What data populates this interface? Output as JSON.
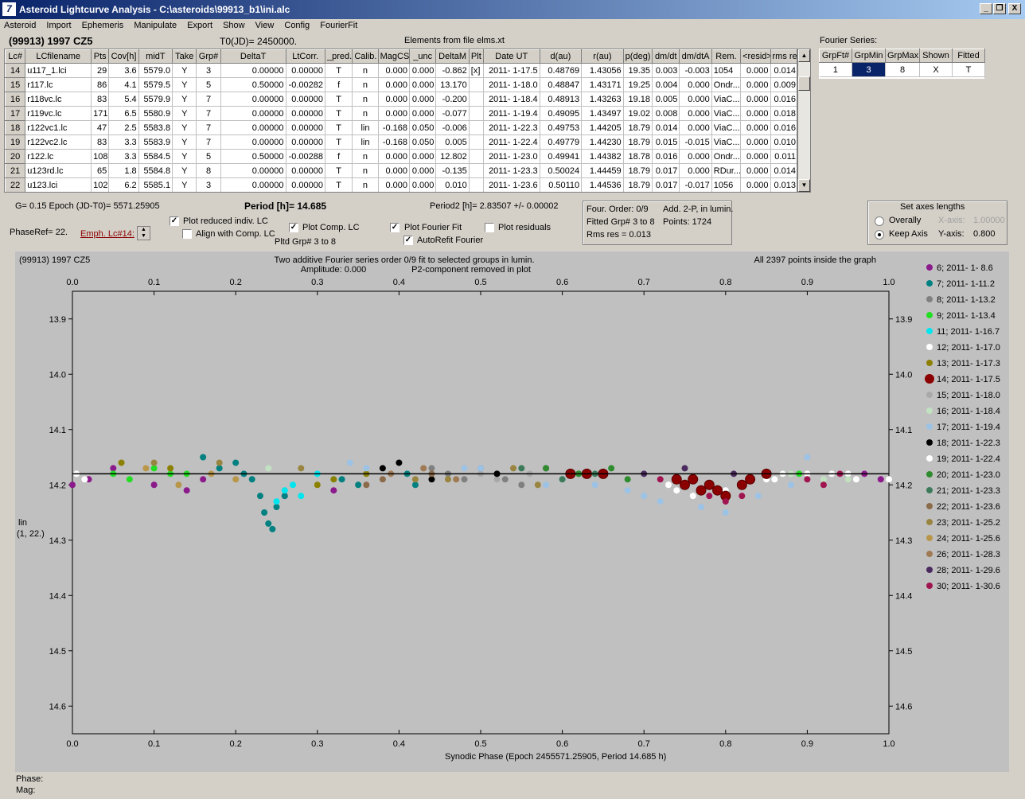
{
  "window": {
    "title": "Asteroid Lightcurve Analysis - C:\\asteroids\\99913_b1\\ini.alc",
    "app_icon": "7",
    "controls": [
      "_",
      "❐",
      "X"
    ]
  },
  "menu": [
    "Asteroid",
    "Import",
    "Ephemeris",
    "Manipulate",
    "Export",
    "Show",
    "View",
    "Config",
    "FourierFit"
  ],
  "header": {
    "object": "(99913) 1997 CZ5",
    "t0": "T0(JD)= 2450000.",
    "elements": "Elements from file elms.xt",
    "fourier_series_label": "Fourier Series:"
  },
  "table": {
    "columns": [
      "Lc#",
      "LCfilename",
      "Pts",
      "Cov[h]",
      "midT",
      "Take",
      "Grp#",
      "DeltaT",
      "LtCorr.",
      "_pred.",
      "Calib.",
      "MagCS",
      "_unc",
      "DeltaM",
      "Plt",
      "Date UT",
      "d(au)",
      "r(au)",
      "p(deg)",
      "dm/dt",
      "dm/dtA",
      "Rem.",
      "<resid>",
      "rms res"
    ],
    "rows": [
      [
        "14",
        "u117_1.lci",
        "29",
        "3.6",
        "5579.0",
        "Y",
        "3",
        "0.00000",
        "0.00000",
        "T",
        "n",
        "0.000",
        "0.000",
        "-0.862",
        "[x]",
        "2011- 1-17.5",
        "0.48769",
        "1.43056",
        "19.35",
        "0.003",
        "-0.003",
        "1054",
        "0.000",
        "0.014"
      ],
      [
        "15",
        "r117.lc",
        "86",
        "4.1",
        "5579.5",
        "Y",
        "5",
        "0.50000",
        "-0.00282",
        "f",
        "n",
        "0.000",
        "0.000",
        "13.170",
        "",
        "2011- 1-18.0",
        "0.48847",
        "1.43171",
        "19.25",
        "0.004",
        "0.000",
        "Ondr...",
        "0.000",
        "0.009"
      ],
      [
        "16",
        "r118vc.lc",
        "83",
        "5.4",
        "5579.9",
        "Y",
        "7",
        "0.00000",
        "0.00000",
        "T",
        "n",
        "0.000",
        "0.000",
        "-0.200",
        "",
        "2011- 1-18.4",
        "0.48913",
        "1.43263",
        "19.18",
        "0.005",
        "0.000",
        "ViaC...",
        "0.000",
        "0.016"
      ],
      [
        "17",
        "r119vc.lc",
        "171",
        "6.5",
        "5580.9",
        "Y",
        "7",
        "0.00000",
        "0.00000",
        "T",
        "n",
        "0.000",
        "0.000",
        "-0.077",
        "",
        "2011- 1-19.4",
        "0.49095",
        "1.43497",
        "19.02",
        "0.008",
        "0.000",
        "ViaC...",
        "0.000",
        "0.018"
      ],
      [
        "18",
        "r122vc1.lc",
        "47",
        "2.5",
        "5583.8",
        "Y",
        "7",
        "0.00000",
        "0.00000",
        "T",
        "lin",
        "-0.168",
        "0.050",
        "-0.006",
        "",
        "2011- 1-22.3",
        "0.49753",
        "1.44205",
        "18.79",
        "0.014",
        "0.000",
        "ViaC...",
        "0.000",
        "0.016"
      ],
      [
        "19",
        "r122vc2.lc",
        "83",
        "3.3",
        "5583.9",
        "Y",
        "7",
        "0.00000",
        "0.00000",
        "T",
        "lin",
        "-0.168",
        "0.050",
        "0.005",
        "",
        "2011- 1-22.4",
        "0.49779",
        "1.44230",
        "18.79",
        "0.015",
        "-0.015",
        "ViaC...",
        "0.000",
        "0.010"
      ],
      [
        "20",
        "r122.lc",
        "108",
        "3.3",
        "5584.5",
        "Y",
        "5",
        "0.50000",
        "-0.00288",
        "f",
        "n",
        "0.000",
        "0.000",
        "12.802",
        "",
        "2011- 1-23.0",
        "0.49941",
        "1.44382",
        "18.78",
        "0.016",
        "0.000",
        "Ondr...",
        "0.000",
        "0.011"
      ],
      [
        "21",
        "u123rd.lc",
        "65",
        "1.8",
        "5584.8",
        "Y",
        "8",
        "0.00000",
        "0.00000",
        "T",
        "n",
        "0.000",
        "0.000",
        "-0.135",
        "",
        "2011- 1-23.3",
        "0.50024",
        "1.44459",
        "18.79",
        "0.017",
        "0.000",
        "RDur...",
        "0.000",
        "0.014"
      ],
      [
        "22",
        "u123.lci",
        "102",
        "6.2",
        "5585.1",
        "Y",
        "3",
        "0.00000",
        "0.00000",
        "T",
        "n",
        "0.000",
        "0.000",
        "0.010",
        "",
        "2011- 1-23.6",
        "0.50110",
        "1.44536",
        "18.79",
        "0.017",
        "-0.017",
        "1056",
        "0.000",
        "0.013"
      ]
    ]
  },
  "fourier_table": {
    "columns": [
      "GrpFt#",
      "GrpMin",
      "GrpMax",
      "Shown",
      "Fitted"
    ],
    "row": [
      "1",
      "3",
      "8",
      "X",
      "T"
    ]
  },
  "controls": {
    "g_epoch": "G= 0.15   Epoch (JD-T0)= 5571.25905",
    "period": "Period [h]= 14.685",
    "period2": "Period2 [h]= 2.83507 +/- 0.00002",
    "phaseref": "PhaseRef= 22.",
    "emph": "Emph. Lc#14:",
    "plot_reduced": "Plot reduced indiv. LC",
    "align_comp": "Align with Comp. LC",
    "plot_comp": "Plot Comp. LC",
    "pltd_grp": "Pltd Grp#  3   to   8",
    "plot_fourier": "Plot Fourier Fit",
    "autorefit": "AutoRefit Fourier",
    "plot_residuals": "Plot residuals",
    "check": "✓"
  },
  "info_box": {
    "line1a": "Four. Order:  0/9",
    "line1b": "Add. 2-P, in lumin.",
    "line2a": "Fitted Grp# 3 to 8",
    "line2b": "Points: 1724",
    "line3": "Rms res      = 0.013"
  },
  "axes_box": {
    "title": "Set axes lengths",
    "overally": "Overally",
    "keep_axis": "Keep Axis",
    "x_axis_label": "X-axis:",
    "x_axis_value": "1.00000",
    "y_axis_label": "Y-axis:",
    "y_axis_value": "0.800"
  },
  "chart_data": {
    "type": "scatter",
    "title_left": "(99913) 1997 CZ5",
    "title_center_1": "Two additive Fourier series order 0/9 fit to selected groups in lumin.",
    "title_center_2": "Amplitude: 0.000",
    "title_center_3": "P2-component removed in plot",
    "title_right": "All 2397 points inside the graph",
    "xlabel": "Synodic Phase (Epoch 2455571.25905, Period 14.685 h)",
    "ylabel": "lin",
    "ylabel2": "(1, 22.)",
    "xlim": [
      0.0,
      1.0
    ],
    "ylim": [
      13.85,
      14.65
    ],
    "y_inverted": true,
    "xticks": [
      "0.0",
      "0.1",
      "0.2",
      "0.3",
      "0.4",
      "0.5",
      "0.6",
      "0.7",
      "0.8",
      "0.9",
      "1.0"
    ],
    "yticks": [
      "13.9",
      "14.0",
      "14.1",
      "14.2",
      "14.3",
      "14.4",
      "14.5",
      "14.6"
    ],
    "fit_line_y": 14.18,
    "series": [
      {
        "name": "6; 2011- 1- 8.6",
        "color": "#8b1a8b",
        "points": [
          [
            0.0,
            14.2
          ],
          [
            0.02,
            14.19
          ],
          [
            0.05,
            14.17
          ],
          [
            0.1,
            14.2
          ],
          [
            0.14,
            14.21
          ],
          [
            0.16,
            14.19
          ],
          [
            0.26,
            14.22
          ],
          [
            0.32,
            14.21
          ],
          [
            0.58,
            14.17
          ],
          [
            0.97,
            14.18
          ],
          [
            0.99,
            14.19
          ]
        ]
      },
      {
        "name": "7; 2011- 1-11.2",
        "color": "#008080",
        "points": [
          [
            0.16,
            14.15
          ],
          [
            0.18,
            14.17
          ],
          [
            0.2,
            14.16
          ],
          [
            0.21,
            14.18
          ],
          [
            0.22,
            14.19
          ],
          [
            0.23,
            14.22
          ],
          [
            0.235,
            14.25
          ],
          [
            0.24,
            14.27
          ],
          [
            0.245,
            14.28
          ],
          [
            0.25,
            14.24
          ],
          [
            0.26,
            14.22
          ],
          [
            0.33,
            14.19
          ],
          [
            0.35,
            14.2
          ],
          [
            0.41,
            14.18
          ],
          [
            0.42,
            14.2
          ],
          [
            0.62,
            14.18
          ]
        ]
      },
      {
        "name": "8; 2011- 1-13.2",
        "color": "#808080",
        "points": [
          [
            0.44,
            14.17
          ],
          [
            0.46,
            14.18
          ],
          [
            0.48,
            14.19
          ],
          [
            0.5,
            14.17
          ],
          [
            0.52,
            14.18
          ],
          [
            0.53,
            14.19
          ],
          [
            0.55,
            14.2
          ]
        ]
      },
      {
        "name": "9; 2011- 1-13.4",
        "color": "#22dd22",
        "points": [
          [
            0.05,
            14.18
          ],
          [
            0.07,
            14.19
          ],
          [
            0.1,
            14.17
          ],
          [
            0.12,
            14.18
          ],
          [
            0.14,
            14.18
          ],
          [
            0.87,
            14.18
          ],
          [
            0.89,
            14.18
          ]
        ]
      },
      {
        "name": "11; 2011- 1-16.7",
        "color": "#00e5ee",
        "points": [
          [
            0.25,
            14.23
          ],
          [
            0.26,
            14.21
          ],
          [
            0.27,
            14.2
          ],
          [
            0.28,
            14.22
          ],
          [
            0.3,
            14.18
          ],
          [
            0.32,
            14.19
          ]
        ]
      },
      {
        "name": "12; 2011- 1-17.0",
        "color": "#ffffff",
        "points": [
          [
            0.005,
            14.18
          ],
          [
            0.015,
            14.19
          ],
          [
            0.73,
            14.2
          ],
          [
            0.74,
            14.21
          ],
          [
            0.76,
            14.22
          ],
          [
            0.8,
            14.21
          ],
          [
            0.85,
            14.19
          ],
          [
            0.87,
            14.18
          ],
          [
            0.93,
            14.18
          ],
          [
            0.95,
            14.18
          ],
          [
            1.0,
            14.19
          ]
        ]
      },
      {
        "name": "13; 2011- 1-17.3",
        "color": "#8b8000",
        "points": [
          [
            0.06,
            14.16
          ],
          [
            0.12,
            14.17
          ],
          [
            0.3,
            14.2
          ],
          [
            0.32,
            14.19
          ],
          [
            0.36,
            14.18
          ]
        ]
      },
      {
        "name": "14; 2011- 1-17.5",
        "color": "#8b0000",
        "points": [
          [
            0.61,
            14.18
          ],
          [
            0.63,
            14.18
          ],
          [
            0.65,
            14.18
          ],
          [
            0.74,
            14.19
          ],
          [
            0.75,
            14.2
          ],
          [
            0.76,
            14.19
          ],
          [
            0.77,
            14.21
          ],
          [
            0.78,
            14.2
          ],
          [
            0.79,
            14.21
          ],
          [
            0.8,
            14.22
          ],
          [
            0.82,
            14.2
          ],
          [
            0.83,
            14.19
          ],
          [
            0.85,
            14.18
          ]
        ]
      },
      {
        "name": "15; 2011- 1-18.0",
        "color": "#a9a9a9",
        "points": [
          [
            0.5,
            14.18
          ],
          [
            0.52,
            14.19
          ],
          [
            0.56,
            14.18
          ]
        ]
      },
      {
        "name": "16; 2011- 1-18.4",
        "color": "#c1e1c1",
        "points": [
          [
            0.24,
            14.17
          ],
          [
            0.88,
            14.18
          ],
          [
            0.92,
            14.19
          ],
          [
            0.95,
            14.19
          ]
        ]
      },
      {
        "name": "17; 2011- 1-19.4",
        "color": "#9cc2e5",
        "points": [
          [
            0.34,
            14.16
          ],
          [
            0.36,
            14.17
          ],
          [
            0.48,
            14.17
          ],
          [
            0.5,
            14.17
          ],
          [
            0.58,
            14.2
          ],
          [
            0.6,
            14.19
          ],
          [
            0.64,
            14.2
          ],
          [
            0.68,
            14.21
          ],
          [
            0.7,
            14.22
          ],
          [
            0.72,
            14.23
          ],
          [
            0.77,
            14.24
          ],
          [
            0.8,
            14.25
          ],
          [
            0.84,
            14.22
          ],
          [
            0.88,
            14.2
          ],
          [
            0.9,
            14.15
          ]
        ]
      },
      {
        "name": "18; 2011- 1-22.3",
        "color": "#000000",
        "points": [
          [
            0.38,
            14.17
          ],
          [
            0.4,
            14.16
          ],
          [
            0.44,
            14.19
          ],
          [
            0.52,
            14.18
          ]
        ]
      },
      {
        "name": "19; 2011- 1-22.4",
        "color": "#ffffff",
        "points": [
          [
            0.86,
            14.19
          ],
          [
            0.9,
            14.18
          ],
          [
            0.94,
            14.18
          ],
          [
            0.96,
            14.19
          ]
        ]
      },
      {
        "name": "20; 2011- 1-23.0",
        "color": "#2e8b2e",
        "points": [
          [
            0.58,
            14.17
          ],
          [
            0.62,
            14.18
          ],
          [
            0.66,
            14.17
          ],
          [
            0.68,
            14.19
          ]
        ]
      },
      {
        "name": "21; 2011- 1-23.3",
        "color": "#3c7a5a",
        "points": [
          [
            0.55,
            14.17
          ],
          [
            0.6,
            14.19
          ],
          [
            0.64,
            14.18
          ]
        ]
      },
      {
        "name": "22; 2011- 1-23.6",
        "color": "#8b6b4a",
        "points": [
          [
            0.36,
            14.2
          ],
          [
            0.38,
            14.19
          ],
          [
            0.44,
            14.18
          ]
        ]
      },
      {
        "name": "23; 2011- 1-25.2",
        "color": "#998540",
        "points": [
          [
            0.1,
            14.16
          ],
          [
            0.18,
            14.16
          ],
          [
            0.28,
            14.17
          ],
          [
            0.42,
            14.19
          ],
          [
            0.46,
            14.19
          ],
          [
            0.54,
            14.17
          ],
          [
            0.57,
            14.2
          ]
        ]
      },
      {
        "name": "24; 2011- 1-25.6",
        "color": "#b8964a",
        "points": [
          [
            0.09,
            14.17
          ],
          [
            0.13,
            14.2
          ],
          [
            0.17,
            14.18
          ],
          [
            0.2,
            14.19
          ]
        ]
      },
      {
        "name": "26; 2011- 1-28.3",
        "color": "#a07a55",
        "points": [
          [
            0.39,
            14.18
          ],
          [
            0.43,
            14.17
          ],
          [
            0.47,
            14.19
          ]
        ]
      },
      {
        "name": "28; 2011- 1-29.6",
        "color": "#4b2a5f",
        "points": [
          [
            0.7,
            14.18
          ],
          [
            0.75,
            14.17
          ],
          [
            0.81,
            14.18
          ]
        ]
      },
      {
        "name": "30; 2011- 1-30.6",
        "color": "#a01550",
        "points": [
          [
            0.72,
            14.19
          ],
          [
            0.78,
            14.22
          ],
          [
            0.8,
            14.23
          ],
          [
            0.82,
            14.22
          ],
          [
            0.9,
            14.19
          ],
          [
            0.92,
            14.2
          ],
          [
            0.94,
            14.18
          ]
        ]
      }
    ]
  },
  "status": {
    "phase": "Phase:",
    "mag": "Mag:"
  }
}
